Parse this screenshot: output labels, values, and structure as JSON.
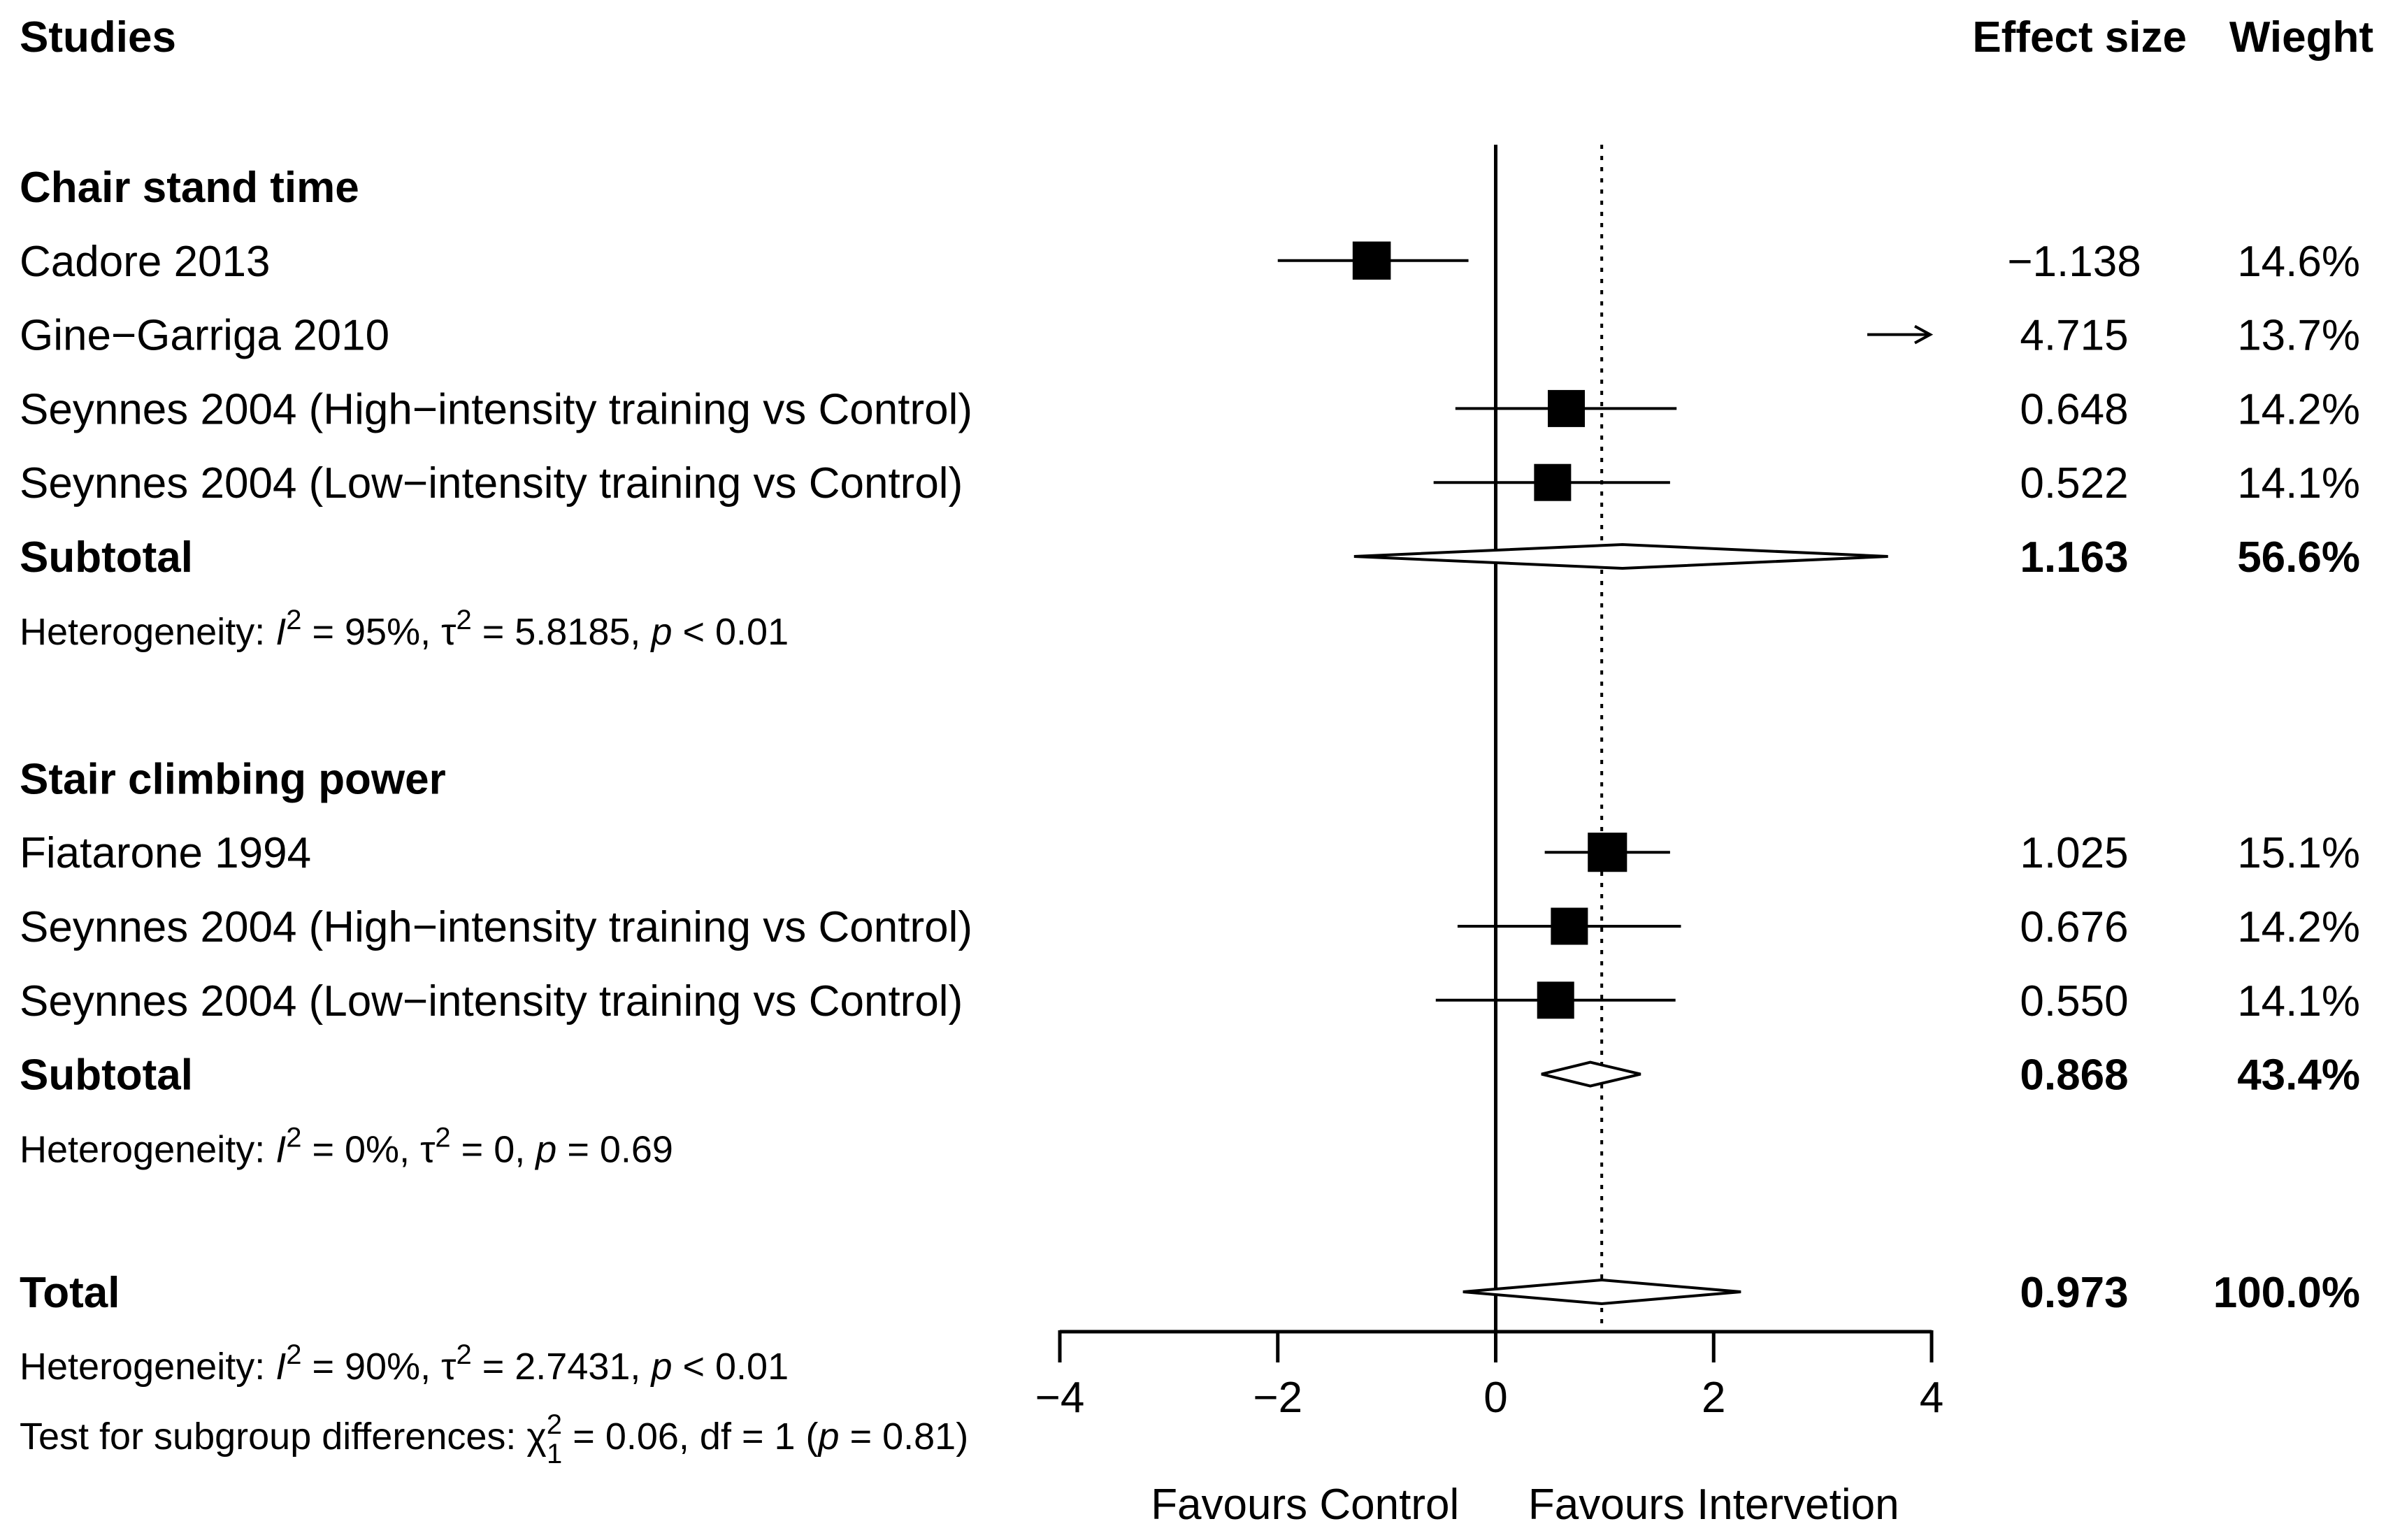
{
  "header": {
    "studies": "Studies",
    "effect_size": "Effect size",
    "weight": "Wieght"
  },
  "chart_data": {
    "type": "forest",
    "xlim": [
      -4,
      4
    ],
    "xticks": [
      -4,
      -2,
      0,
      2,
      4
    ],
    "xtick_labels": [
      "−4",
      "−2",
      "0",
      "2",
      "4"
    ],
    "null_line": 0,
    "overall_line": 0.973,
    "favours_left": "Favours Control",
    "favours_right": "Favours Intervetion",
    "groups": [
      {
        "name": "Chair stand time",
        "studies": [
          {
            "label": "Cadore 2013",
            "es": -1.138,
            "es_label": "−1.138",
            "lo": -2.0,
            "hi": -0.25,
            "weight": "14.6%",
            "box": 0.35
          },
          {
            "label": "Gine−Garriga 2010",
            "es": 4.715,
            "es_label": "4.715",
            "lo": 3.55,
            "hi": 5.9,
            "weight": "13.7%",
            "box": 0.35,
            "arrow": true
          },
          {
            "label": "Seynnes 2004 (High−intensity training vs Control)",
            "es": 0.648,
            "es_label": "0.648",
            "lo": -0.37,
            "hi": 1.66,
            "weight": "14.2%",
            "box": 0.34
          },
          {
            "label": "Seynnes 2004 (Low−intensity training vs Control)",
            "es": 0.522,
            "es_label": "0.522",
            "lo": -0.57,
            "hi": 1.6,
            "weight": "14.1%",
            "box": 0.34
          }
        ],
        "subtotal": {
          "label": "Subtotal",
          "es": 1.163,
          "es_label": "1.163",
          "lo": -1.3,
          "hi": 3.6,
          "weight": "56.6%"
        },
        "heterogeneity": {
          "prefix": "Heterogeneity: ",
          "i2": " = 95%, ",
          "tau": " = 5.8185, ",
          "p": " < 0.01"
        }
      },
      {
        "name": "Stair climbing power",
        "studies": [
          {
            "label": "Fiatarone 1994",
            "es": 1.025,
            "es_label": "1.025",
            "lo": 0.45,
            "hi": 1.6,
            "weight": "15.1%",
            "box": 0.36
          },
          {
            "label": "Seynnes 2004 (High−intensity training vs Control)",
            "es": 0.676,
            "es_label": "0.676",
            "lo": -0.35,
            "hi": 1.7,
            "weight": "14.2%",
            "box": 0.34
          },
          {
            "label": "Seynnes 2004 (Low−intensity training vs Control)",
            "es": 0.55,
            "es_label": "0.550",
            "lo": -0.55,
            "hi": 1.65,
            "weight": "14.1%",
            "box": 0.34
          }
        ],
        "subtotal": {
          "label": "Subtotal",
          "es": 0.868,
          "es_label": "0.868",
          "lo": 0.42,
          "hi": 1.33,
          "weight": "43.4%"
        },
        "heterogeneity": {
          "prefix": "Heterogeneity: ",
          "i2": " = 0%, ",
          "tau": " = 0, ",
          "p": " = 0.69"
        }
      }
    ],
    "total": {
      "label": "Total",
      "es": 0.973,
      "es_label": "0.973",
      "lo": -0.3,
      "hi": 2.25,
      "weight": "100.0%",
      "heterogeneity": {
        "prefix": "Heterogeneity: ",
        "i2": " = 90%, ",
        "tau": " = 2.7431, ",
        "p": " < 0.01"
      },
      "subgroup_test": {
        "prefix": "Test for subgroup differences: ",
        "chi": "χ",
        "chi_sup": "2",
        "chi_sub": "1",
        "stat": " = 0.06, df = 1 (",
        "p_letter": "p",
        "p": " = 0.81)"
      }
    }
  }
}
